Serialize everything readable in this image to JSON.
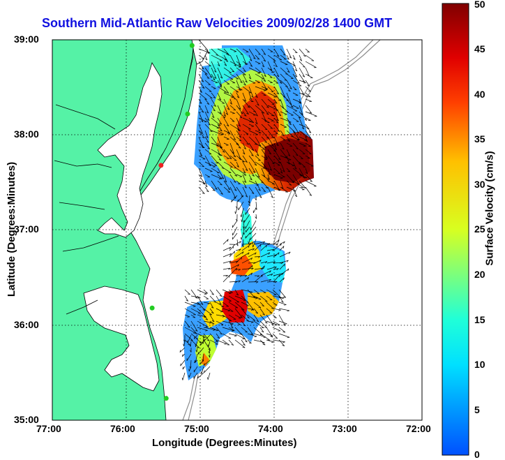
{
  "title": "Southern Mid-Atlantic Raw Velocities 2009/02/28 1400 GMT",
  "xlabel": "Longitude (Degrees:Minutes)",
  "ylabel": "Latitude (Degrees:Minutes)",
  "colorbar": {
    "label": "Surface Velocity (cm/s)",
    "range": [
      0,
      50
    ],
    "ticks": [
      "0",
      "5",
      "10",
      "15",
      "20",
      "25",
      "30",
      "35",
      "40",
      "45",
      "50"
    ]
  },
  "axes": {
    "x_ticks": [
      "77:00",
      "76:00",
      "75:00",
      "74:00",
      "73:00",
      "72:00"
    ],
    "y_ticks": [
      "39:00",
      "38:00",
      "37:00",
      "36:00",
      "35:00"
    ],
    "lon_range": [
      -77,
      -72
    ],
    "lat_range": [
      35,
      39
    ],
    "grid": "dotted"
  },
  "colors": {
    "land": "#55f2a6",
    "coastline": "#000000",
    "bathymetry": "#8c8c8c",
    "stations": "#22cc22",
    "station_highlight": "#ee2222",
    "title": "#1010e0"
  },
  "stations": [
    {
      "lon": -75.11,
      "lat": 38.94
    },
    {
      "lon": -75.17,
      "lat": 38.22
    },
    {
      "lon": -75.53,
      "lat": 37.68,
      "highlight": true
    },
    {
      "lon": -75.65,
      "lat": 36.18
    },
    {
      "lon": -75.46,
      "lat": 35.23
    }
  ]
}
